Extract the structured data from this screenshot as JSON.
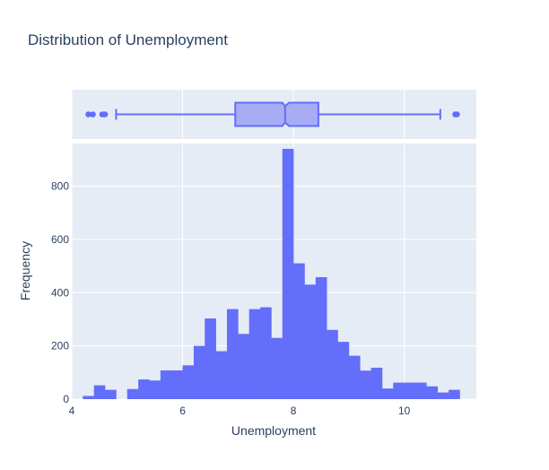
{
  "colors": {
    "background": "#ffffff",
    "plot_bg": "#e5ecf6",
    "grid": "#ffffff",
    "bar": "#636efa",
    "box_fill": "#a7acf4",
    "text": "#2a3f5f"
  },
  "chart_data": {
    "type": "bar",
    "subtype": "histogram-with-marginal-box",
    "title": "Distribution of Unemployment",
    "xlabel": "Unemployment",
    "ylabel": "Frequency",
    "xlim": [
      4,
      11.3
    ],
    "ylim": [
      0,
      960
    ],
    "xticks": [
      4,
      6,
      8,
      10
    ],
    "yticks": [
      0,
      200,
      400,
      600,
      800
    ],
    "grid": true,
    "bin_width": 0.2,
    "bin_start": 4.2,
    "series": [
      {
        "values": [
          12,
          52,
          35,
          0,
          38,
          74,
          70,
          108,
          108,
          127,
          200,
          303,
          180,
          338,
          245,
          338,
          345,
          230,
          940,
          510,
          430,
          458,
          260,
          215,
          163,
          107,
          118,
          40,
          62,
          62,
          62,
          48,
          25,
          35
        ]
      }
    ],
    "box": {
      "min": 4.8,
      "q1": 6.95,
      "median": 7.85,
      "q3": 8.45,
      "max": 10.65,
      "notch_low": 7.8,
      "notch_high": 7.92,
      "outliers": [
        4.3,
        4.38,
        4.55,
        4.6,
        10.92,
        10.95
      ]
    }
  }
}
